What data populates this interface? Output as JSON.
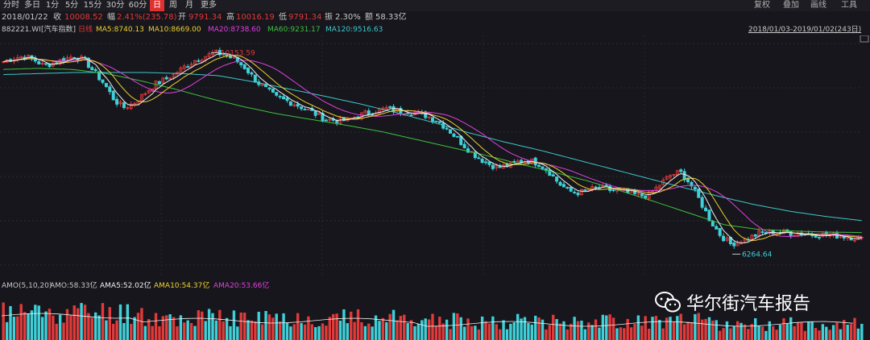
{
  "toolbar": {
    "tabs": [
      "分时",
      "多日",
      "1分",
      "5分",
      "15分",
      "30分",
      "60分",
      "日",
      "周",
      "月",
      "更多"
    ],
    "active_tab": "日",
    "right_tools": [
      "复权",
      "叠加",
      "画线",
      "工具"
    ]
  },
  "quote": {
    "date": "2018/01/22",
    "close_label": "收",
    "close": "10008.52",
    "change_label": "幅",
    "change": "2.41%(235.78)",
    "open_label": "开",
    "open": "9791.34",
    "high_label": "高",
    "high": "10016.19",
    "low_label": "低",
    "low": "9791.34",
    "amp_label": "振",
    "amp": "2.30%",
    "amount_label": "额",
    "amount": "58.33亿"
  },
  "indicator": {
    "code": "882221.WI",
    "name": "[汽车指数]",
    "period": "日线",
    "ma5": "MA5:8740.13",
    "ma10": "MA10:8669.00",
    "ma20": "MA20:8738.60",
    "ma60": "MA60:9231.17",
    "ma120": "MA120:9516.63",
    "range": "2018/01/03-2019/01/02(243日)"
  },
  "annotations": {
    "high_mark": "10153.59",
    "low_mark": "6264.64"
  },
  "volume_header": {
    "amo": "AMO(5,10,20)",
    "amo_val": "AMO:58.33亿",
    "ama5": "AMA5:52.02亿",
    "ama10": "AMA10:54.37亿",
    "ama20": "AMA20:53.66亿"
  },
  "watermark": {
    "text": "华尔街汽车报告",
    "icon": "wechat-icon"
  },
  "colors": {
    "up": "#e03a3a",
    "down": "#3fd0d8",
    "ma5": "#f0f0f0",
    "ma10": "#f0d030",
    "ma20": "#e040e0",
    "ma60": "#40c040",
    "ma120": "#40c8c8",
    "active_tab": "#e03030",
    "background": "#16161c"
  },
  "chart_data": {
    "type": "candlestick",
    "x_range": [
      "2018/01/03",
      "2019/01/02"
    ],
    "days": 243,
    "y_high": 10153.59,
    "y_low": 6264.64,
    "close_path": [
      9950,
      10020,
      10060,
      9990,
      9870,
      9930,
      10000,
      10060,
      9980,
      9750,
      9520,
      9200,
      9060,
      9160,
      9340,
      9520,
      9600,
      9720,
      9860,
      9980,
      10060,
      10120,
      10080,
      9980,
      9820,
      9580,
      9420,
      9260,
      9200,
      9120,
      9030,
      8930,
      8830,
      8820,
      8820,
      8900,
      8960,
      9000,
      9050,
      9000,
      8990,
      8950,
      8900,
      8800,
      8650,
      8450,
      8260,
      8100,
      7980,
      7900,
      7950,
      8020,
      8050,
      7980,
      7830,
      7600,
      7450,
      7420,
      7480,
      7520,
      7470,
      7450,
      7410,
      7360,
      7380,
      7580,
      7750,
      7820,
      7600,
      7250,
      6880,
      6600,
      6430,
      6480,
      6560,
      6650,
      6650,
      6660,
      6640,
      6630,
      6620,
      6610,
      6600,
      6580,
      6560,
      6520
    ],
    "ma120_path": [
      9700,
      9720,
      9740,
      9740,
      9740,
      9720,
      9680,
      9560,
      9420,
      9280,
      9130,
      8960,
      8780,
      8580,
      8400,
      8240,
      8060,
      7880,
      7700,
      7520,
      7350,
      7190,
      7060,
      6960,
      6880
    ],
    "ma60_path": [
      9800,
      9820,
      9800,
      9720,
      9580,
      9420,
      9240,
      9080,
      8940,
      8830,
      8720,
      8600,
      8450,
      8300,
      8150,
      7980,
      7820,
      7650,
      7450,
      7240,
      7020,
      6800,
      6710,
      6680,
      6660,
      6650
    ],
    "volume_levels": "relative only"
  }
}
